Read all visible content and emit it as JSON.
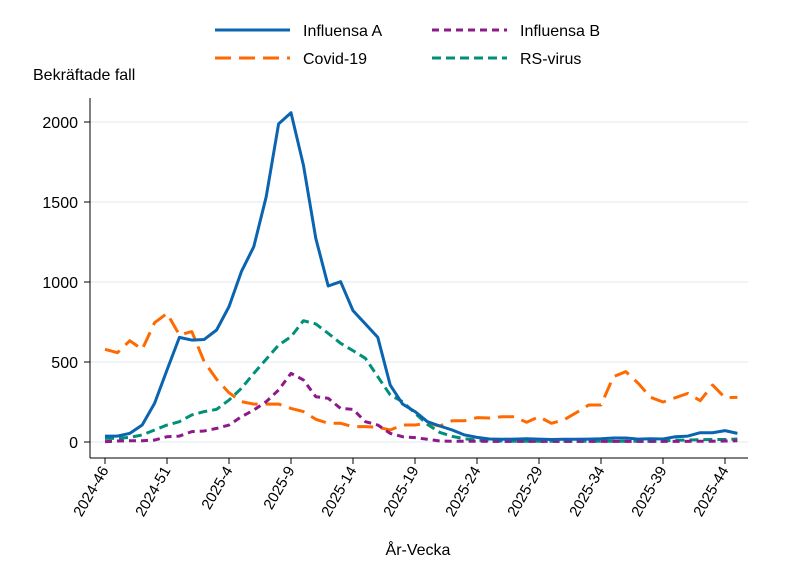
{
  "chart_data": {
    "type": "line",
    "title": "",
    "ylabel": "Bekräftade fall",
    "xlabel": "År-Vecka",
    "ylim": [
      0,
      2100
    ],
    "yticks": [
      0,
      500,
      1000,
      1500,
      2000
    ],
    "grid": true,
    "legend_position": "top",
    "categories": [
      "2024-46",
      "2024-47",
      "2024-48",
      "2024-49",
      "2024-50",
      "2024-51",
      "2024-52",
      "2025-1",
      "2025-2",
      "2025-3",
      "2025-4",
      "2025-5",
      "2025-6",
      "2025-7",
      "2025-8",
      "2025-9",
      "2025-10",
      "2025-11",
      "2025-12",
      "2025-13",
      "2025-14",
      "2025-15",
      "2025-16",
      "2025-17",
      "2025-18",
      "2025-19",
      "2025-20",
      "2025-21",
      "2025-22",
      "2025-23",
      "2025-24",
      "2025-25",
      "2025-26",
      "2025-27",
      "2025-28",
      "2025-29",
      "2025-30",
      "2025-31",
      "2025-32",
      "2025-33",
      "2025-34",
      "2025-35",
      "2025-36",
      "2025-37",
      "2025-38",
      "2025-39",
      "2025-40",
      "2025-41",
      "2025-42",
      "2025-43",
      "2025-44",
      "2025-45"
    ],
    "xtick_labels": [
      "2024-46",
      "2024-51",
      "2025-4",
      "2025-9",
      "2025-14",
      "2025-19",
      "2025-24",
      "2025-29",
      "2025-34",
      "2025-39",
      "2025-44"
    ],
    "series": [
      {
        "name": "Influensa A",
        "color": "#0a64b0",
        "dash": "solid",
        "values": [
          37,
          37,
          54,
          106,
          242,
          450,
          654,
          637,
          641,
          700,
          846,
          1065,
          1221,
          1533,
          1988,
          2058,
          1731,
          1273,
          975,
          1002,
          821,
          738,
          654,
          356,
          237,
          190,
          127,
          100,
          75,
          44,
          29,
          19,
          17,
          18,
          20,
          18,
          16,
          17,
          17,
          18,
          20,
          25,
          25,
          18,
          20,
          19,
          33,
          37,
          58,
          58,
          71,
          54
        ]
      },
      {
        "name": "Influensa B",
        "color": "#8c1a8a",
        "dash": "short",
        "values": [
          2,
          6,
          8,
          8,
          12,
          33,
          37,
          65,
          69,
          85,
          106,
          158,
          200,
          252,
          325,
          429,
          388,
          283,
          273,
          210,
          204,
          127,
          106,
          54,
          33,
          27,
          17,
          6,
          5,
          5,
          5,
          4,
          4,
          4,
          4,
          4,
          4,
          4,
          4,
          4,
          4,
          4,
          4,
          4,
          4,
          4,
          4,
          4,
          5,
          5,
          6,
          8
        ]
      },
      {
        "name": "Covid-19",
        "color": "#ff6a00",
        "dash": "long",
        "values": [
          579,
          558,
          633,
          579,
          746,
          804,
          669,
          690,
          502,
          392,
          308,
          252,
          237,
          237,
          237,
          210,
          190,
          142,
          117,
          117,
          96,
          96,
          92,
          75,
          106,
          106,
          117,
          100,
          133,
          133,
          152,
          150,
          158,
          158,
          123,
          158,
          117,
          138,
          183,
          231,
          231,
          408,
          440,
          367,
          279,
          250,
          277,
          304,
          258,
          356,
          277,
          279
        ]
      },
      {
        "name": "RS-virus",
        "color": "#00907a",
        "dash": "medium",
        "values": [
          23,
          23,
          29,
          44,
          75,
          106,
          127,
          169,
          190,
          204,
          262,
          335,
          429,
          517,
          606,
          658,
          758,
          738,
          679,
          617,
          571,
          523,
          408,
          294,
          252,
          180,
          110,
          60,
          35,
          20,
          12,
          8,
          6,
          5,
          5,
          5,
          5,
          5,
          5,
          5,
          5,
          5,
          5,
          5,
          5,
          5,
          12,
          12,
          14,
          16,
          16,
          19
        ]
      }
    ]
  }
}
